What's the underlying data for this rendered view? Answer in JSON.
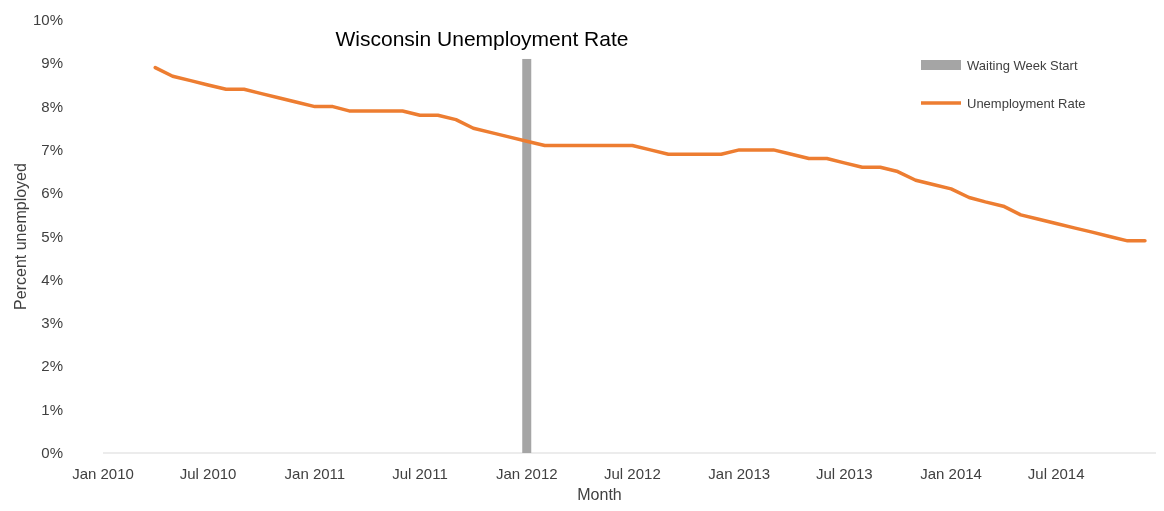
{
  "chart_data": {
    "type": "line",
    "title": "Wisconsin Unemployment Rate",
    "xlabel": "Month",
    "ylabel": "Percent unemployed",
    "xlim": [
      "2010-01",
      "2014-12-20"
    ],
    "xticks": [
      {
        "value": "2010-01",
        "label": "Jan 2010"
      },
      {
        "value": "2010-07",
        "label": "Jul 2010"
      },
      {
        "value": "2011-01",
        "label": "Jan 2011"
      },
      {
        "value": "2011-07",
        "label": "Jul 2011"
      },
      {
        "value": "2012-01",
        "label": "Jan 2012"
      },
      {
        "value": "2012-07",
        "label": "Jul 2012"
      },
      {
        "value": "2013-01",
        "label": "Jan 2013"
      },
      {
        "value": "2013-07",
        "label": "Jul 2013"
      },
      {
        "value": "2014-01",
        "label": "Jan 2014"
      },
      {
        "value": "2014-07",
        "label": "Jul 2014"
      }
    ],
    "ylim": [
      0,
      10
    ],
    "yticks": [
      {
        "value": 0,
        "label": "0%"
      },
      {
        "value": 1,
        "label": "1%"
      },
      {
        "value": 2,
        "label": "2%"
      },
      {
        "value": 3,
        "label": "3%"
      },
      {
        "value": 4,
        "label": "4%"
      },
      {
        "value": 5,
        "label": "5%"
      },
      {
        "value": 6,
        "label": "6%"
      },
      {
        "value": 7,
        "label": "7%"
      },
      {
        "value": 8,
        "label": "8%"
      },
      {
        "value": 9,
        "label": "9%"
      },
      {
        "value": 10,
        "label": "10%"
      }
    ],
    "grid": false,
    "legend": "top right",
    "series": [
      {
        "name": "Waiting Week Start",
        "type": "bar",
        "color": "#a5a5a5",
        "x": [
          "2012-01"
        ],
        "values": [
          9.1
        ]
      },
      {
        "name": "Unemployment Rate",
        "color": "#ed7d31",
        "x": [
          "2010-04",
          "2010-05",
          "2010-06",
          "2010-07",
          "2010-08",
          "2010-09",
          "2010-10",
          "2010-11",
          "2010-12",
          "2011-01",
          "2011-02",
          "2011-03",
          "2011-04",
          "2011-05",
          "2011-06",
          "2011-07",
          "2011-08",
          "2011-09",
          "2011-10",
          "2011-11",
          "2011-12",
          "2012-01",
          "2012-02",
          "2012-03",
          "2012-04",
          "2012-05",
          "2012-06",
          "2012-07",
          "2012-08",
          "2012-09",
          "2012-10",
          "2012-11",
          "2012-12",
          "2013-01",
          "2013-02",
          "2013-03",
          "2013-04",
          "2013-05",
          "2013-06",
          "2013-07",
          "2013-08",
          "2013-09",
          "2013-10",
          "2013-11",
          "2013-12",
          "2014-01",
          "2014-02",
          "2014-03",
          "2014-04",
          "2014-05",
          "2014-06",
          "2014-07",
          "2014-08",
          "2014-09",
          "2014-10",
          "2014-11",
          "2014-12"
        ],
        "values": [
          8.9,
          8.7,
          8.6,
          8.5,
          8.4,
          8.4,
          8.3,
          8.2,
          8.1,
          8.0,
          8.0,
          7.9,
          7.9,
          7.9,
          7.9,
          7.8,
          7.8,
          7.7,
          7.5,
          7.4,
          7.3,
          7.2,
          7.1,
          7.1,
          7.1,
          7.1,
          7.1,
          7.1,
          7.0,
          6.9,
          6.9,
          6.9,
          6.9,
          7.0,
          7.0,
          7.0,
          6.9,
          6.8,
          6.8,
          6.7,
          6.6,
          6.6,
          6.5,
          6.3,
          6.2,
          6.1,
          5.9,
          5.8,
          5.7,
          5.5,
          5.4,
          5.3,
          5.2,
          5.1,
          5.0,
          4.9,
          4.9
        ]
      }
    ]
  }
}
